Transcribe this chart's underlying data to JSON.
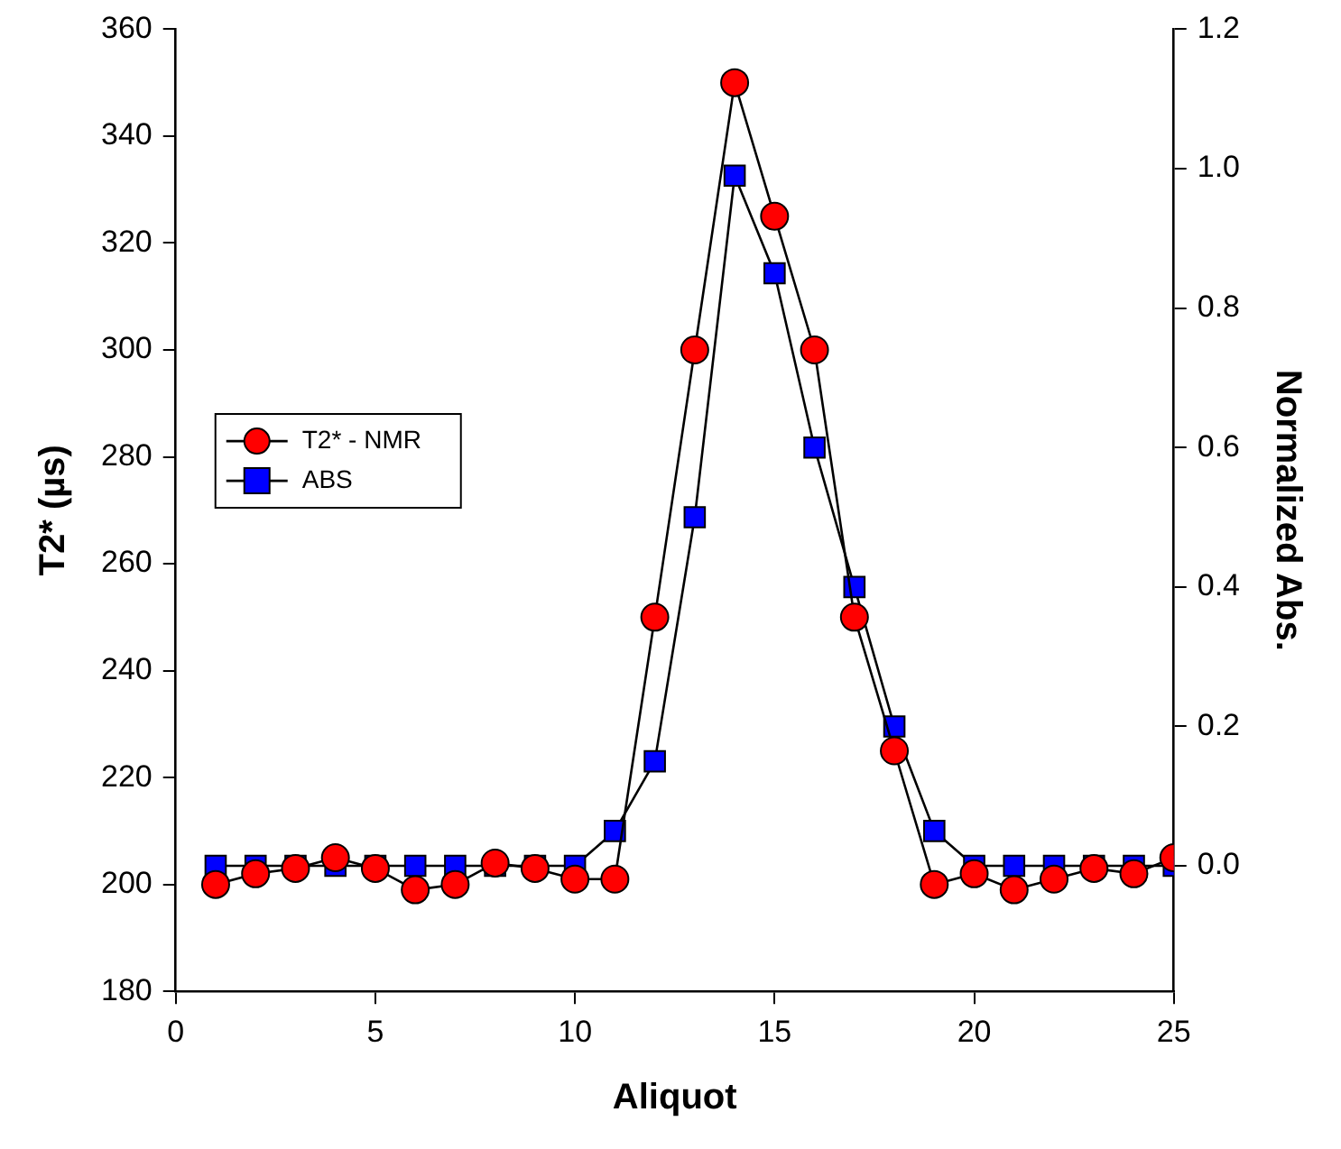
{
  "chart_data": {
    "type": "line",
    "xlabel": "Aliquot",
    "ylabel": "T2* (µs)",
    "y2label": "Normalized Abs.",
    "x": [
      1,
      2,
      3,
      4,
      5,
      6,
      7,
      8,
      9,
      10,
      11,
      12,
      13,
      14,
      15,
      16,
      17,
      18,
      19,
      20,
      21,
      22,
      23,
      24,
      25
    ],
    "series": [
      {
        "name": "T2* - NMR",
        "color": "#ff0000",
        "marker": "circle",
        "values": [
          200,
          202,
          203,
          205,
          203,
          199,
          200,
          204,
          203,
          201,
          201,
          250,
          300,
          350,
          325,
          300,
          250,
          225,
          200,
          202,
          199,
          201,
          203,
          202,
          205
        ]
      },
      {
        "name": "ABS",
        "color": "#0000ff",
        "marker": "square",
        "axis": "y2",
        "values": [
          0,
          0,
          0,
          0,
          0,
          0,
          0,
          0,
          0,
          0,
          0.05,
          0.15,
          0.5,
          0.99,
          0.85,
          0.6,
          0.4,
          0.2,
          0.05,
          0,
          0,
          0,
          0,
          0,
          0
        ]
      }
    ],
    "xlim": [
      0,
      25
    ],
    "xticks": [
      0,
      5,
      10,
      15,
      20,
      25
    ],
    "ylim": [
      180,
      360
    ],
    "yticks": [
      180,
      200,
      220,
      240,
      260,
      280,
      300,
      320,
      340,
      360
    ],
    "y2lim": [
      -0.18,
      1.2
    ],
    "y2ticks": [
      {
        "value": 0,
        "label": "0.0"
      },
      0.2,
      0.4,
      0.6,
      0.8,
      {
        "value": 1,
        "label": "1.0"
      },
      1.2
    ],
    "grid": false,
    "legend": "left",
    "line_style": "solid"
  }
}
